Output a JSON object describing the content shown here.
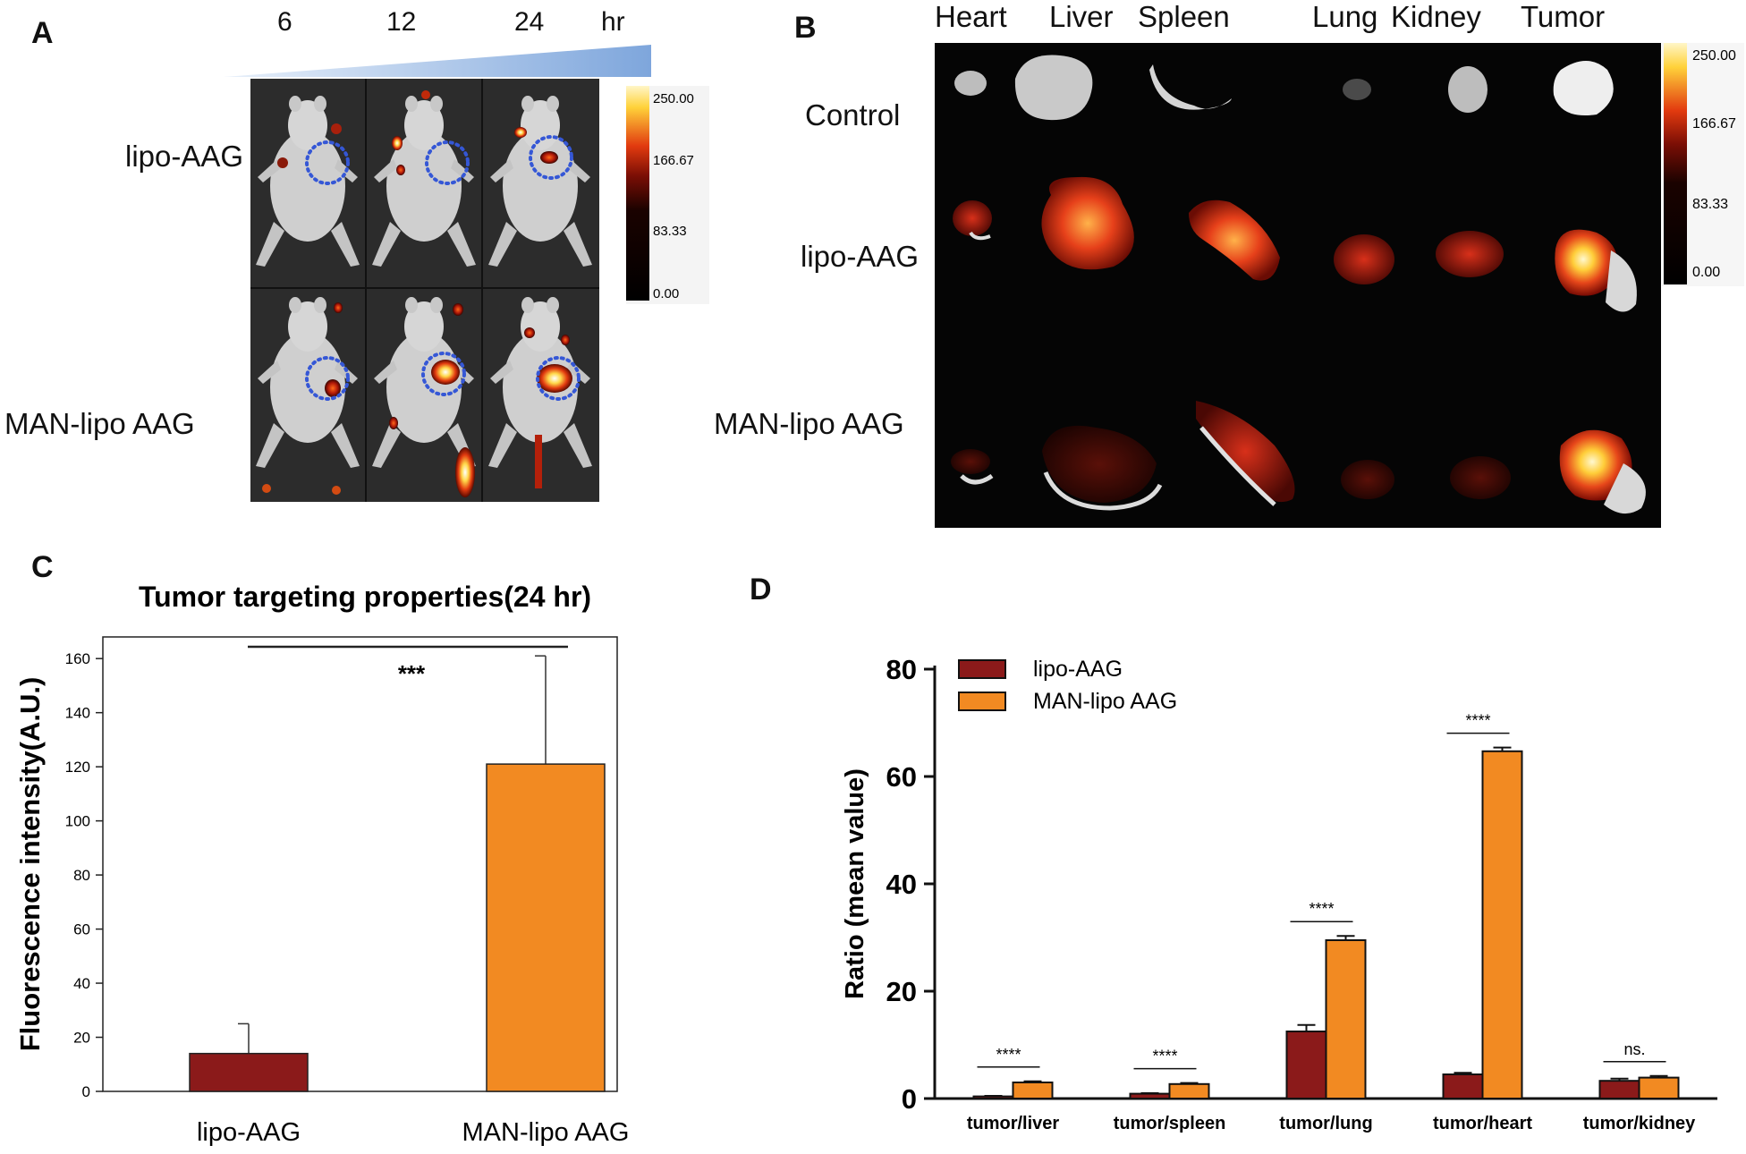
{
  "figure": {
    "panels": {
      "a": {
        "letter": "A",
        "timepoints": [
          "6",
          "12",
          "24"
        ],
        "time_unit": "hr",
        "rows": [
          "lipo-AAG",
          "MAN-lipo AAG"
        ],
        "colorbar_ticks": [
          "250.00",
          "166.67",
          "83.33",
          "0.00"
        ]
      },
      "b": {
        "letter": "B",
        "organs": [
          "Heart",
          "Liver",
          "Spleen",
          "Lung",
          "Kidney",
          "Tumor"
        ],
        "rows": [
          "Control",
          "lipo-AAG",
          "MAN-lipo AAG"
        ],
        "colorbar_ticks": [
          "250.00",
          "166.67",
          "83.33",
          "0.00"
        ]
      },
      "c": {
        "letter": "C"
      },
      "d": {
        "letter": "D"
      }
    },
    "colors": {
      "lipo": "#8b1a1a",
      "man": "#f28a22",
      "blue_circle": "#3557d6"
    }
  },
  "chart_data": [
    {
      "type": "bar",
      "title": "Tumor targeting properties(24 hr)",
      "xlabel": "",
      "ylabel": "Fluorescence intensity(A.U.)",
      "categories": [
        "lipo-AAG",
        "MAN-lipo AAG"
      ],
      "values": [
        14,
        121
      ],
      "errors": [
        11,
        40
      ],
      "ylim": [
        0,
        168
      ],
      "yticks": [
        "0",
        "20",
        "40",
        "60",
        "80",
        "100",
        "120",
        "140",
        "160"
      ],
      "significance": "***"
    },
    {
      "type": "bar",
      "title": "",
      "xlabel": "",
      "ylabel": "Ratio (mean value)",
      "categories": [
        "tumor/liver",
        "tumor/spleen",
        "tumor/lung",
        "tumor/heart",
        "tumor/kidney"
      ],
      "series": [
        {
          "name": "lipo-AAG",
          "values": [
            0.4,
            0.9,
            12.5,
            4.5,
            3.3
          ],
          "errors": [
            0.1,
            0.1,
            1.2,
            0.3,
            0.4
          ]
        },
        {
          "name": "MAN-lipo AAG",
          "values": [
            3.0,
            2.7,
            29.5,
            64.7,
            3.9
          ],
          "errors": [
            0.2,
            0.2,
            0.8,
            0.7,
            0.3
          ]
        }
      ],
      "ylim": [
        0,
        80
      ],
      "yticks": [
        "0",
        "20",
        "40",
        "60",
        "80"
      ],
      "significance": [
        "****",
        "****",
        "****",
        "****",
        "ns."
      ],
      "legend": "top-left"
    }
  ]
}
